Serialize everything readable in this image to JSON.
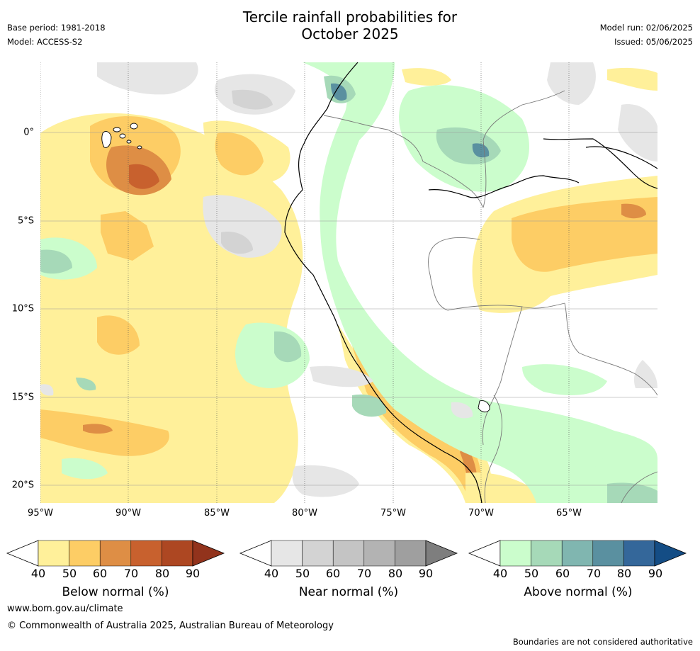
{
  "header": {
    "title_line1": "Tercile rainfall probabilities for",
    "title_line2": "October 2025",
    "base_period": "Base period: 1981-2018",
    "model": "Model: ACCESS-S2",
    "model_run": "Model run: 02/06/2025",
    "issued": "Issued: 05/06/2025"
  },
  "map": {
    "x_ticks": [
      "95°W",
      "90°W",
      "85°W",
      "80°W",
      "75°W",
      "70°W",
      "65°W"
    ],
    "x_tick_values": [
      -95,
      -90,
      -85,
      -80,
      -75,
      -70,
      -65
    ],
    "y_ticks": [
      "0°",
      "5°S",
      "10°S",
      "15°S",
      "20°S"
    ],
    "y_tick_values": [
      0,
      -5,
      -10,
      -15,
      -20
    ],
    "lon_range": [
      -95,
      -60
    ],
    "lat_range": [
      -21,
      4
    ],
    "gridlines": true
  },
  "colorbars": [
    {
      "key": "below",
      "label": "Below normal (%)",
      "ticks": [
        "40",
        "50",
        "60",
        "70",
        "80",
        "90"
      ],
      "colors": [
        "#fff09a",
        "#fdcd65",
        "#de8e45",
        "#c8612e",
        "#ad4722",
        "#92331c"
      ]
    },
    {
      "key": "near",
      "label": "Near normal (%)",
      "ticks": [
        "40",
        "50",
        "60",
        "70",
        "80",
        "90"
      ],
      "colors": [
        "#e6e6e6",
        "#d3d3d3",
        "#c4c4c4",
        "#b3b3b3",
        "#9f9f9f",
        "#7e7e7e"
      ]
    },
    {
      "key": "above",
      "label": "Above normal (%)",
      "ticks": [
        "40",
        "50",
        "60",
        "70",
        "80",
        "90"
      ],
      "colors": [
        "#cbfdcc",
        "#a6d9b8",
        "#80b6b0",
        "#5a90a0",
        "#34679a",
        "#144d85"
      ]
    }
  ],
  "footer": {
    "website": "www.bom.gov.au/climate",
    "copyright": "© Commonwealth of Australia 2025, Australian Bureau of Meteorology",
    "disclaimer": "Boundaries are not considered authoritative"
  }
}
